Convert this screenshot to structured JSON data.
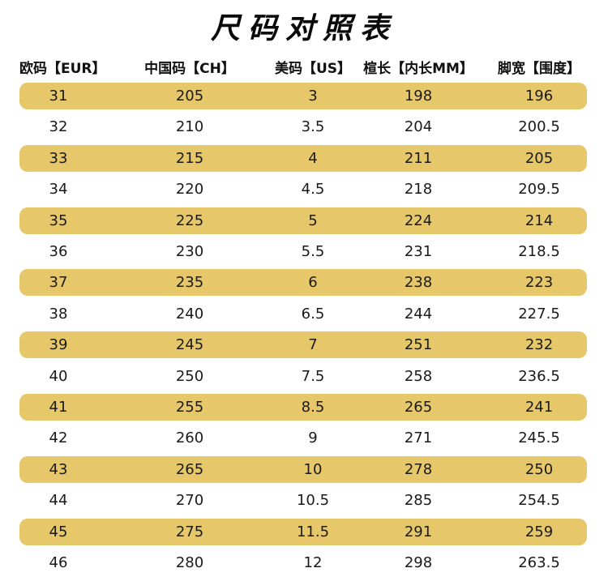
{
  "title": "尺码对照表",
  "headers": [
    "欧码【EUR】",
    "中国码【CH】",
    "美码【US】",
    "楦长【内长MM】",
    "脚宽【围度】"
  ],
  "colors": {
    "row_highlight": "#e6c86a",
    "text": "#1a1a1a"
  },
  "rows": [
    [
      "31",
      "205",
      "3",
      "198",
      "196"
    ],
    [
      "32",
      "210",
      "3.5",
      "204",
      "200.5"
    ],
    [
      "33",
      "215",
      "4",
      "211",
      "205"
    ],
    [
      "34",
      "220",
      "4.5",
      "218",
      "209.5"
    ],
    [
      "35",
      "225",
      "5",
      "224",
      "214"
    ],
    [
      "36",
      "230",
      "5.5",
      "231",
      "218.5"
    ],
    [
      "37",
      "235",
      "6",
      "238",
      "223"
    ],
    [
      "38",
      "240",
      "6.5",
      "244",
      "227.5"
    ],
    [
      "39",
      "245",
      "7",
      "251",
      "232"
    ],
    [
      "40",
      "250",
      "7.5",
      "258",
      "236.5"
    ],
    [
      "41",
      "255",
      "8.5",
      "265",
      "241"
    ],
    [
      "42",
      "260",
      "9",
      "271",
      "245.5"
    ],
    [
      "43",
      "265",
      "10",
      "278",
      "250"
    ],
    [
      "44",
      "270",
      "10.5",
      "285",
      "254.5"
    ],
    [
      "45",
      "275",
      "11.5",
      "291",
      "259"
    ],
    [
      "46",
      "280",
      "12",
      "298",
      "263.5"
    ]
  ]
}
